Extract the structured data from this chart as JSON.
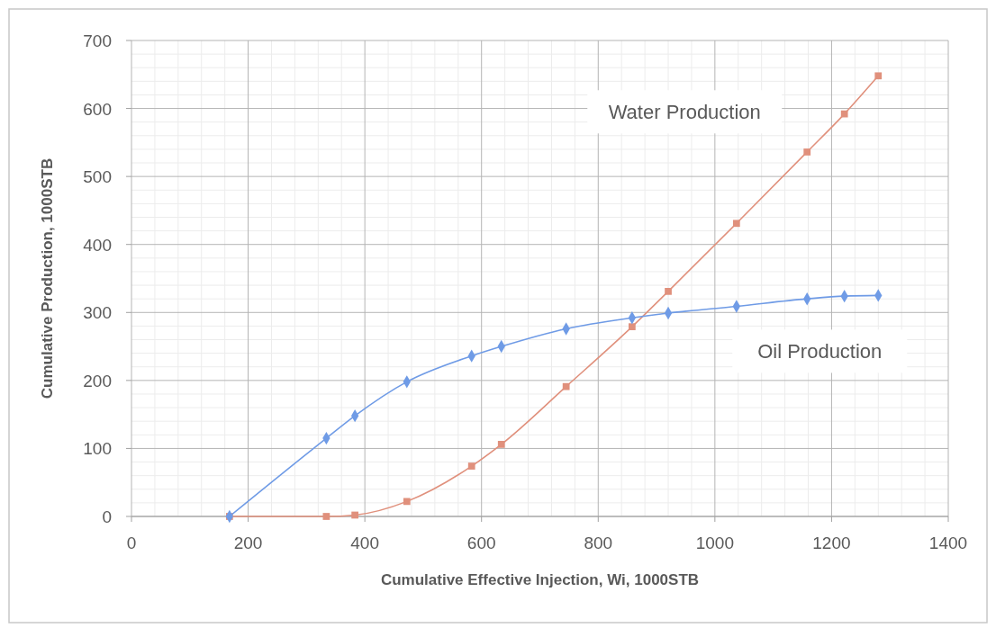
{
  "chart_data": {
    "type": "line",
    "xlabel": "Cumulative Effective Injection, Wi, 1000STB",
    "ylabel": "Cumulative Production, 1000STB",
    "xlim": [
      0,
      1400
    ],
    "xticks": [
      0,
      200,
      400,
      600,
      800,
      1000,
      1200,
      1400
    ],
    "ylim": [
      0,
      700
    ],
    "yticks": [
      0,
      100,
      200,
      300,
      400,
      500,
      600,
      700
    ],
    "grid": true,
    "series": [
      {
        "name": "Water Production",
        "color": "#e0907c",
        "marker": "square",
        "x": [
          168,
          334,
          383,
          472,
          583,
          634,
          745,
          858,
          920,
          1037,
          1158,
          1222,
          1280
        ],
        "values": [
          0,
          0,
          2,
          22,
          74,
          106,
          191,
          279,
          331,
          431,
          536,
          592,
          648
        ]
      },
      {
        "name": "Oil Production",
        "color": "#6f9be6",
        "marker": "diamond",
        "x": [
          168,
          334,
          383,
          472,
          583,
          634,
          745,
          858,
          920,
          1037,
          1158,
          1222,
          1280
        ],
        "values": [
          0,
          115,
          148,
          198,
          236,
          250,
          276,
          292,
          299,
          309,
          320,
          324,
          325
        ]
      }
    ]
  }
}
